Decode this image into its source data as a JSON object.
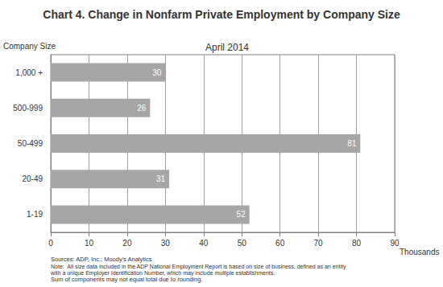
{
  "chart_data": {
    "type": "bar",
    "title": "Chart 4. Change in Nonfarm Private Employment by Company Size",
    "subtitle": "April 2014",
    "x_label": "Thousands",
    "y_label": "Company Size",
    "orientation": "horizontal",
    "categories": [
      "1,000 +",
      "500-999",
      "50-499",
      "20-49",
      "1-19"
    ],
    "values": [
      30,
      26,
      81,
      31,
      52
    ],
    "color": "#a6a6a6",
    "xlim": [
      0,
      90
    ],
    "xticks": [
      0,
      10,
      20,
      30,
      40,
      50,
      60,
      70,
      80,
      90
    ],
    "grid": true,
    "data_labels": true,
    "annotations": [
      "Sources: ADP, Inc.; Moody's Analytics",
      "Note:  All size data included in the ADP National Employment Report is based on size of business, defined as an entity with a unique Employer Identification Number, which may include multiple establishments.",
      "Sum of components may not equal total due to rounding."
    ]
  }
}
